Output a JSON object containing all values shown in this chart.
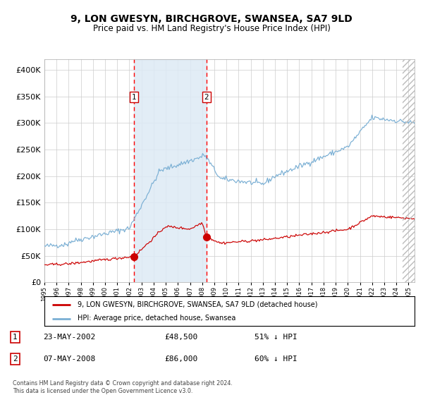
{
  "title": "9, LON GWESYN, BIRCHGROVE, SWANSEA, SA7 9LD",
  "subtitle": "Price paid vs. HM Land Registry's House Price Index (HPI)",
  "legend_line1": "9, LON GWESYN, BIRCHGROVE, SWANSEA, SA7 9LD (detached house)",
  "legend_line2": "HPI: Average price, detached house, Swansea",
  "footnote": "Contains HM Land Registry data © Crown copyright and database right 2024.\nThis data is licensed under the Open Government Licence v3.0.",
  "sale1_date": "23-MAY-2002",
  "sale1_price": "£48,500",
  "sale1_hpi": "51% ↓ HPI",
  "sale2_date": "07-MAY-2008",
  "sale2_price": "£86,000",
  "sale2_hpi": "60% ↓ HPI",
  "ylim": [
    0,
    420000
  ],
  "yticks": [
    0,
    50000,
    100000,
    150000,
    200000,
    250000,
    300000,
    350000,
    400000
  ],
  "hpi_fill_color": "#ddeaf5",
  "hpi_line_color": "#7aafd4",
  "property_color": "#cc0000",
  "sale1_x": 2002.38,
  "sale1_y": 48500,
  "sale2_x": 2008.35,
  "sale2_y": 86000,
  "shade_start": 2002.38,
  "shade_end": 2008.35,
  "xmin": 1995.0,
  "xmax": 2025.5,
  "hatch_start": 2024.5,
  "bg_color": "#ffffff",
  "grid_color": "#cccccc",
  "title_fontsize": 10,
  "subtitle_fontsize": 8.5
}
